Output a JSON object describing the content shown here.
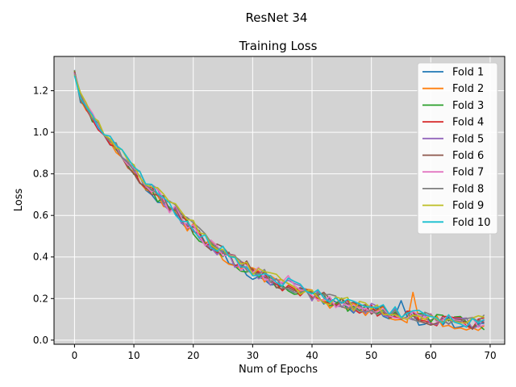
{
  "figure": {
    "suptitle": "ResNet 34"
  },
  "chart_data": {
    "type": "line",
    "title": "Training Loss",
    "xlabel": "Num of Epochs",
    "ylabel": "Loss",
    "xlim": [
      -3.45,
      72.45
    ],
    "ylim": [
      -0.02,
      1.365
    ],
    "xticks": [
      0,
      10,
      20,
      30,
      40,
      50,
      60,
      70
    ],
    "yticks": [
      0.0,
      0.2,
      0.4,
      0.6,
      0.8,
      1.0,
      1.2
    ],
    "grid": true,
    "background": "#d3d3d3",
    "legend_position": "upper right",
    "series": [
      {
        "name": "Fold 1",
        "color": "#1f77b4"
      },
      {
        "name": "Fold 2",
        "color": "#ff7f0e"
      },
      {
        "name": "Fold 3",
        "color": "#2ca02c"
      },
      {
        "name": "Fold 4",
        "color": "#d62728"
      },
      {
        "name": "Fold 5",
        "color": "#9467bd"
      },
      {
        "name": "Fold 6",
        "color": "#8c564b"
      },
      {
        "name": "Fold 7",
        "color": "#e377c2"
      },
      {
        "name": "Fold 8",
        "color": "#7f7f7f"
      },
      {
        "name": "Fold 9",
        "color": "#bcbd22"
      },
      {
        "name": "Fold 10",
        "color": "#17becf"
      }
    ],
    "x": [
      0,
      1,
      2,
      3,
      4,
      5,
      6,
      7,
      8,
      9,
      10,
      11,
      12,
      13,
      14,
      15,
      16,
      17,
      18,
      19,
      20,
      21,
      22,
      23,
      24,
      25,
      26,
      27,
      28,
      29,
      30,
      31,
      32,
      33,
      34,
      35,
      36,
      37,
      38,
      39,
      40,
      41,
      42,
      43,
      44,
      45,
      46,
      47,
      48,
      49,
      50,
      51,
      52,
      53,
      54,
      55,
      56,
      57,
      58,
      59,
      60,
      61,
      62,
      63,
      64,
      65,
      66,
      67,
      68,
      69
    ],
    "base_curve": [
      1.3,
      1.17,
      1.12,
      1.07,
      1.03,
      0.99,
      0.96,
      0.93,
      0.89,
      0.85,
      0.82,
      0.78,
      0.75,
      0.72,
      0.7,
      0.67,
      0.64,
      0.62,
      0.59,
      0.56,
      0.54,
      0.51,
      0.48,
      0.46,
      0.44,
      0.42,
      0.4,
      0.38,
      0.36,
      0.35,
      0.33,
      0.32,
      0.31,
      0.29,
      0.28,
      0.27,
      0.26,
      0.25,
      0.24,
      0.23,
      0.22,
      0.21,
      0.2,
      0.19,
      0.18,
      0.18,
      0.17,
      0.16,
      0.16,
      0.15,
      0.15,
      0.14,
      0.14,
      0.13,
      0.13,
      0.12,
      0.12,
      0.12,
      0.11,
      0.11,
      0.1,
      0.1,
      0.1,
      0.09,
      0.09,
      0.09,
      0.08,
      0.08,
      0.08,
      0.09
    ],
    "annotations_note": [
      {
        "series": "Fold 2",
        "x": 57,
        "y": 0.23
      },
      {
        "series": "Fold 7",
        "x": 36,
        "y": 0.31
      },
      {
        "series": "Fold 1",
        "x": 55,
        "y": 0.19
      },
      {
        "series": "Fold 3",
        "x": 69,
        "y": 0.05
      }
    ]
  }
}
